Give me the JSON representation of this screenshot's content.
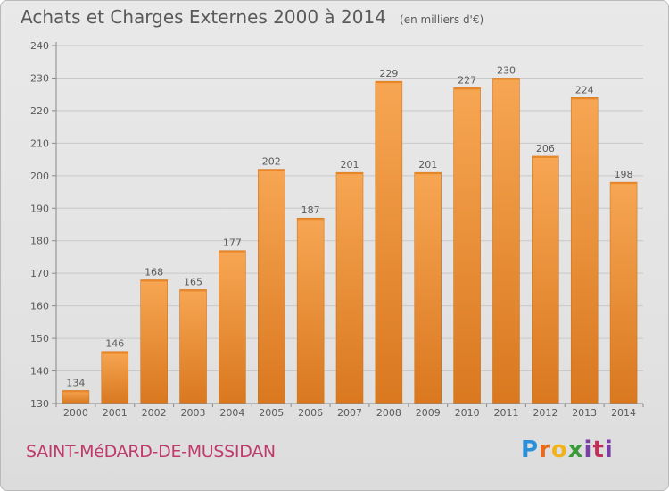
{
  "header": {
    "title": "Achats et Charges Externes 2000 à 2014",
    "subtitle": "(en milliers d'€)"
  },
  "commune": "SAINT-MéDARD-DE-MUSSIDAN",
  "logo": {
    "text": "Proxiti",
    "letters": [
      "P",
      "r",
      "o",
      "x",
      "i",
      "t",
      "i"
    ]
  },
  "colors": {
    "bar_light": "#f7a653",
    "bar_dark": "#d9781f",
    "commune_text": "#c03a6b",
    "text": "#5a5a5a"
  },
  "chart_data": {
    "type": "bar",
    "title": "Achats et Charges Externes 2000 à 2014",
    "subtitle": "(en milliers d'€)",
    "xlabel": "",
    "ylabel": "",
    "categories": [
      "2000",
      "2001",
      "2002",
      "2003",
      "2004",
      "2005",
      "2006",
      "2007",
      "2008",
      "2009",
      "2010",
      "2011",
      "2012",
      "2013",
      "2014"
    ],
    "values": [
      134,
      146,
      168,
      165,
      177,
      202,
      187,
      201,
      229,
      201,
      227,
      230,
      206,
      224,
      198
    ],
    "ylim": [
      130,
      240
    ],
    "yticks": [
      130,
      140,
      150,
      160,
      170,
      180,
      190,
      200,
      210,
      220,
      230,
      240
    ],
    "grid": "horizontal",
    "data_labels": true
  }
}
